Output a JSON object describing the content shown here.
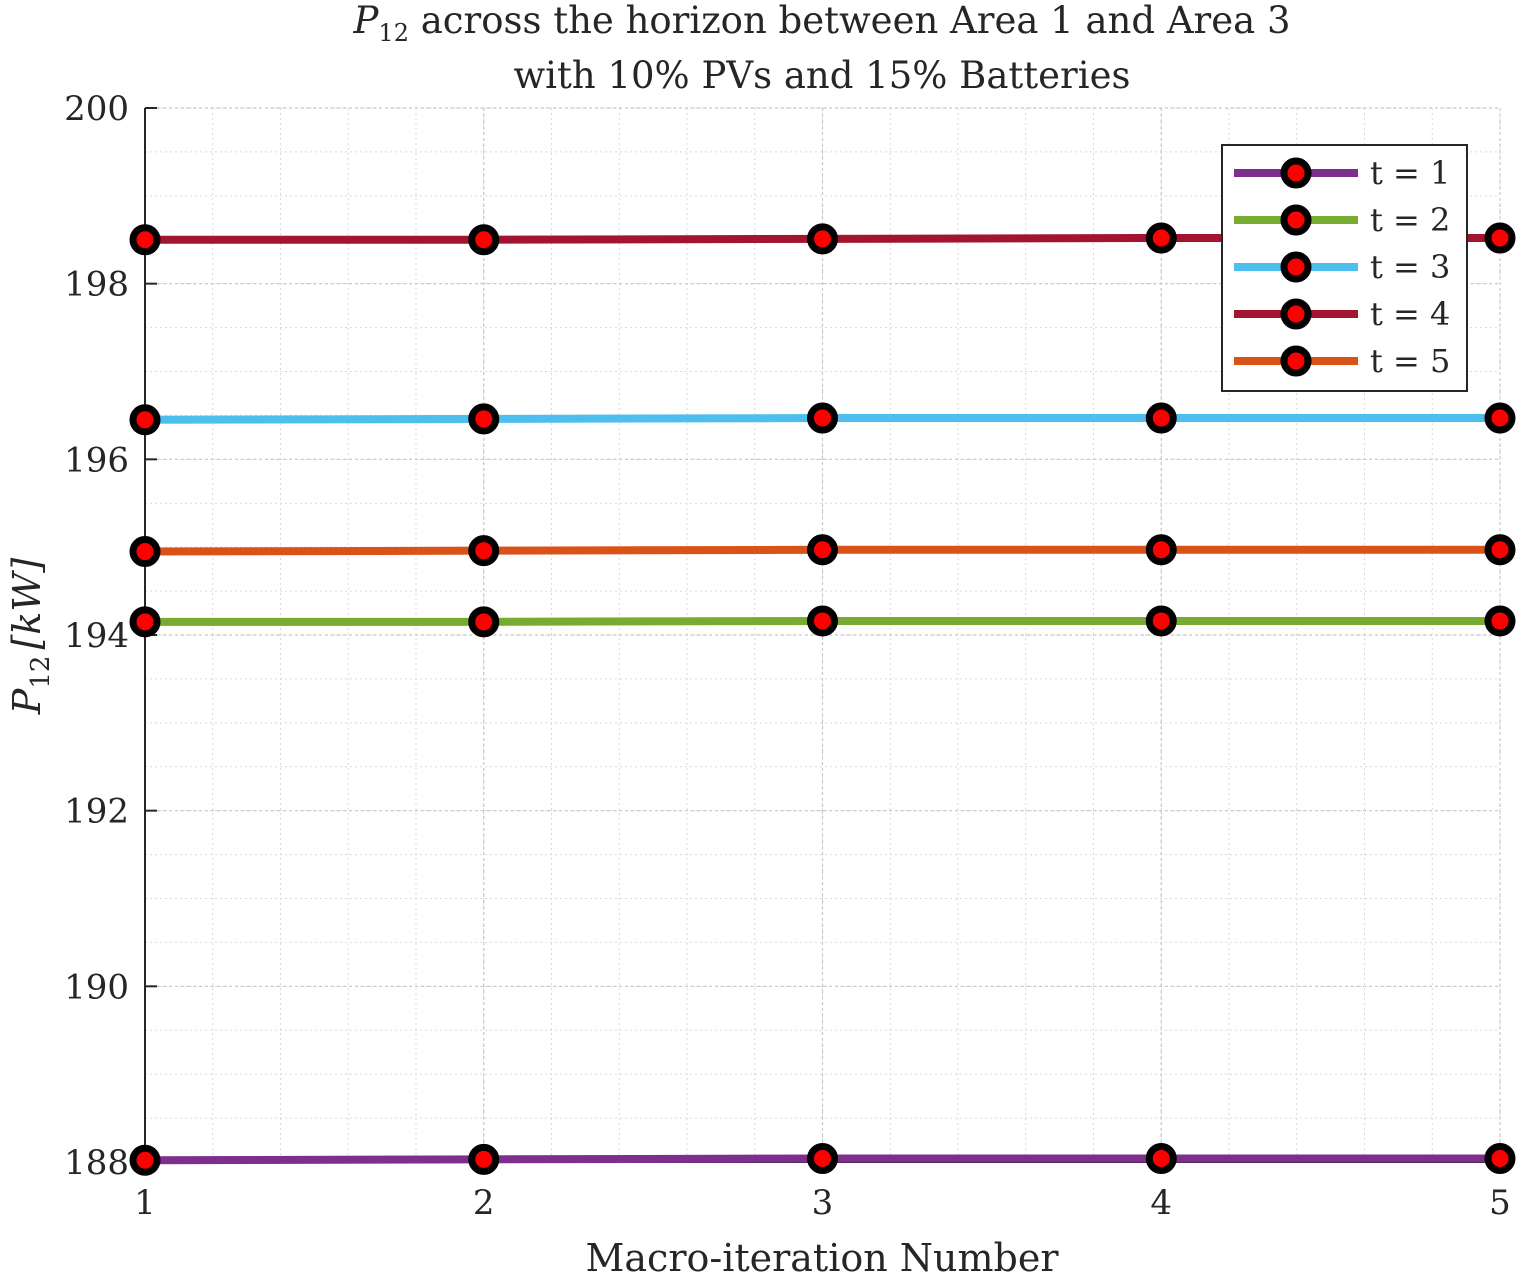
{
  "chart_data": {
    "type": "line",
    "title_sym": "P",
    "title_sub": "12",
    "title_rest": " across the horizon between Area 1 and Area 3",
    "subtitle": "with 10% PVs and 15% Batteries",
    "xlabel": "Macro-iteration Number",
    "ylabel_sym": "P",
    "ylabel_sub": "12",
    "ylabel_unit": "[kW]",
    "x": [
      1,
      2,
      3,
      4,
      5
    ],
    "xlim": [
      1,
      5
    ],
    "ylim": [
      188,
      200
    ],
    "xticks": [
      "1",
      "2",
      "3",
      "4",
      "5"
    ],
    "yticks": [
      "188",
      "190",
      "192",
      "194",
      "196",
      "198",
      "200"
    ],
    "grid": true,
    "minor_grid": true,
    "legend_position": "top-right",
    "marker": {
      "shape": "circle",
      "edge_color": "#000000",
      "face_color": "#ff0000"
    },
    "series": [
      {
        "name": "t = 1",
        "color": "#7E2F8E",
        "values": [
          188.02,
          188.03,
          188.04,
          188.04,
          188.04
        ]
      },
      {
        "name": "t = 2",
        "color": "#77AC30",
        "values": [
          194.15,
          194.15,
          194.16,
          194.16,
          194.16
        ]
      },
      {
        "name": "t = 3",
        "color": "#4DBEEE",
        "values": [
          196.45,
          196.46,
          196.47,
          196.47,
          196.47
        ]
      },
      {
        "name": "t = 4",
        "color": "#A2142F",
        "values": [
          198.5,
          198.5,
          198.51,
          198.52,
          198.52
        ]
      },
      {
        "name": "t = 5",
        "color": "#D95319",
        "values": [
          194.95,
          194.96,
          194.97,
          194.97,
          194.97
        ]
      }
    ]
  }
}
